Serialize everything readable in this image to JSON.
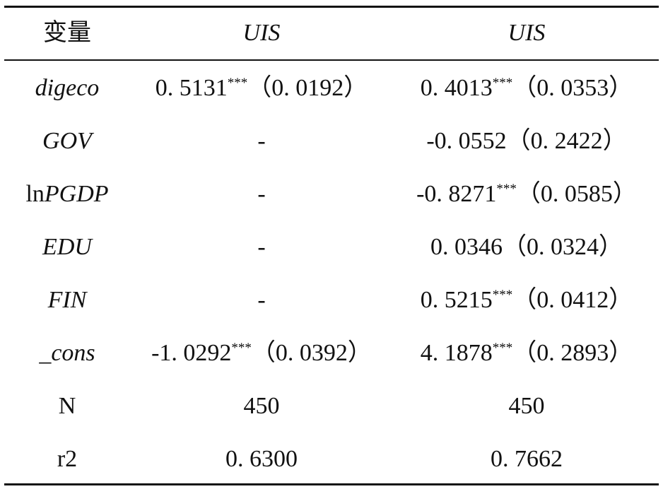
{
  "table": {
    "header": [
      {
        "text": "变量",
        "italic": false
      },
      {
        "text": "UIS",
        "italic": true
      },
      {
        "text": "UIS",
        "italic": true
      }
    ],
    "rows": [
      {
        "label": "digeco",
        "italic": true,
        "cells": [
          {
            "value": "0. 5131",
            "stars": "***",
            "se": "（0. 0192）"
          },
          {
            "value": "0. 4013",
            "stars": "***",
            "se": "（0. 0353）"
          }
        ]
      },
      {
        "label": "GOV",
        "italic": true,
        "cells": [
          {
            "value": "-"
          },
          {
            "value": "-0. 0552",
            "se": "（0. 2422）"
          }
        ]
      },
      {
        "label_prefix": "ln",
        "label": "PGDP",
        "italic": true,
        "cells": [
          {
            "value": "-"
          },
          {
            "value": "-0. 8271",
            "stars": "***",
            "se": "（0. 0585）"
          }
        ]
      },
      {
        "label": "EDU",
        "italic": true,
        "cells": [
          {
            "value": "-"
          },
          {
            "value": "0. 0346",
            "se": "（0. 0324）"
          }
        ]
      },
      {
        "label": "FIN",
        "italic": true,
        "cells": [
          {
            "value": "-"
          },
          {
            "value": "0. 5215",
            "stars": "***",
            "se": "（0. 0412）"
          }
        ]
      },
      {
        "label": "_cons",
        "italic": true,
        "cells": [
          {
            "value": "-1. 0292",
            "stars": "***",
            "se": "（0. 0392）"
          },
          {
            "value": "4. 1878",
            "stars": "***",
            "se": "（0. 2893）"
          }
        ]
      },
      {
        "label": "N",
        "italic": false,
        "cells": [
          {
            "value": "450"
          },
          {
            "value": "450"
          }
        ]
      },
      {
        "label": "r2",
        "italic": false,
        "cells": [
          {
            "value": "0. 6300"
          },
          {
            "value": "0. 7662"
          }
        ]
      }
    ]
  }
}
